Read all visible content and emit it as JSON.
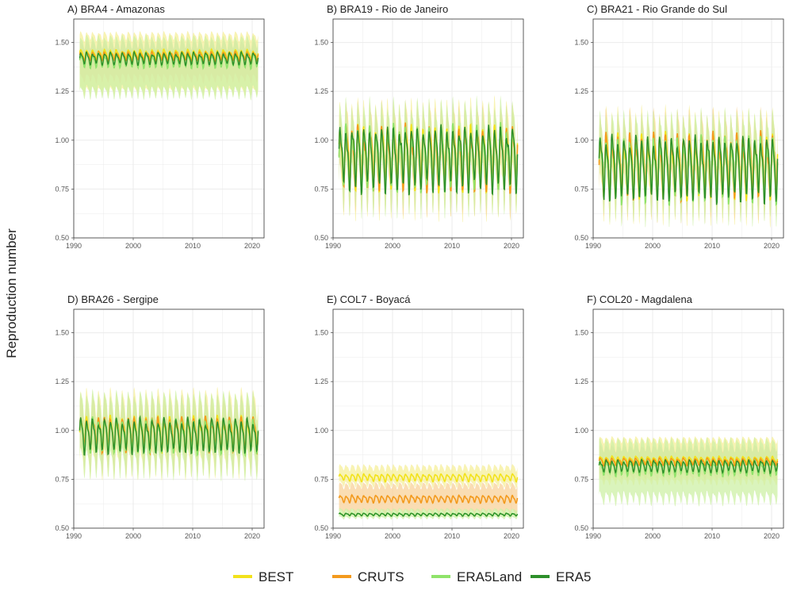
{
  "figure": {
    "ylabel": "Reproduction number",
    "colors": {
      "BEST": "#f2e21b",
      "CRUTS": "#f39a1d",
      "ERA5Land": "#8fe36a",
      "ERA5": "#2d8f2a",
      "ribbon_BEST": "#f6ef9a",
      "ribbon_CRUTS": "#f8d29a",
      "ribbon_ERA5Land": "#cdf0a6",
      "grid": "#ebebeb",
      "frame": "#333333"
    }
  },
  "chart_data": [
    {
      "type": "line",
      "title": "A) BRA4 - Amazonas",
      "xlim": [
        1990,
        2022
      ],
      "ylim": [
        0.5,
        1.62
      ],
      "xticks": [
        1990,
        2000,
        2010,
        2020
      ],
      "xtick_labels": [
        "1990",
        "2000",
        "2010",
        "2020"
      ],
      "yticks": [
        0.5,
        0.75,
        1.0,
        1.25,
        1.5
      ],
      "ytick_labels": [
        "0.50",
        "0.75",
        "1.00",
        "1.25",
        "1.50"
      ],
      "grid": true,
      "series": [
        {
          "name": "BEST",
          "mean": 1.44,
          "amplitude": 0.02,
          "low": 1.22,
          "high": 1.55
        },
        {
          "name": "CRUTS",
          "mean": 1.43,
          "amplitude": 0.02,
          "low": 1.3,
          "high": 1.5
        },
        {
          "name": "ERA5Land",
          "mean": 1.41,
          "amplitude": 0.03,
          "low": 1.22,
          "high": 1.52
        },
        {
          "name": "ERA5",
          "mean": 1.42,
          "amplitude": 0.025
        }
      ]
    },
    {
      "type": "line",
      "title": "B) BRA19 - Rio de Janeiro",
      "xlim": [
        1990,
        2022
      ],
      "ylim": [
        0.5,
        1.62
      ],
      "xticks": [
        1990,
        2000,
        2010,
        2020
      ],
      "xtick_labels": [
        "1990",
        "2000",
        "2010",
        "2020"
      ],
      "yticks": [
        0.5,
        0.75,
        1.0,
        1.25,
        1.5
      ],
      "ytick_labels": [
        "0.50",
        "0.75",
        "1.00",
        "1.25",
        "1.50"
      ],
      "grid": true,
      "series": [
        {
          "name": "BEST",
          "mean": 0.93,
          "amplitude": 0.13,
          "low": 0.75,
          "high": 1.1
        },
        {
          "name": "CRUTS",
          "mean": 0.92,
          "amplitude": 0.13,
          "low": 0.77,
          "high": 1.07
        },
        {
          "name": "ERA5Land",
          "mean": 0.92,
          "amplitude": 0.13,
          "low": 0.76,
          "high": 1.09
        },
        {
          "name": "ERA5",
          "mean": 0.92,
          "amplitude": 0.13
        }
      ]
    },
    {
      "type": "line",
      "title": "C) BRA21 - Rio Grande do Sul",
      "xlim": [
        1990,
        2022
      ],
      "ylim": [
        0.5,
        1.62
      ],
      "xticks": [
        1990,
        2000,
        2010,
        2020
      ],
      "xtick_labels": [
        "1990",
        "2000",
        "2010",
        "2020"
      ],
      "yticks": [
        0.5,
        0.75,
        1.0,
        1.25,
        1.5
      ],
      "ytick_labels": [
        "0.50",
        "0.75",
        "1.00",
        "1.25",
        "1.50"
      ],
      "grid": true,
      "series": [
        {
          "name": "BEST",
          "mean": 0.88,
          "amplitude": 0.13,
          "low": 0.72,
          "high": 1.05
        },
        {
          "name": "CRUTS",
          "mean": 0.88,
          "amplitude": 0.13,
          "low": 0.74,
          "high": 1.03
        },
        {
          "name": "ERA5Land",
          "mean": 0.87,
          "amplitude": 0.13,
          "low": 0.73,
          "high": 1.04
        },
        {
          "name": "ERA5",
          "mean": 0.87,
          "amplitude": 0.13
        }
      ]
    },
    {
      "type": "line",
      "title": "D) BRA26 - Sergipe",
      "xlim": [
        1990,
        2022
      ],
      "ylim": [
        0.5,
        1.62
      ],
      "xticks": [
        1990,
        2000,
        2010,
        2020
      ],
      "xtick_labels": [
        "1990",
        "2000",
        "2010",
        "2020"
      ],
      "yticks": [
        0.5,
        0.75,
        1.0,
        1.25,
        1.5
      ],
      "ytick_labels": [
        "0.50",
        "0.75",
        "1.00",
        "1.25",
        "1.50"
      ],
      "grid": true,
      "series": [
        {
          "name": "BEST",
          "mean": 0.99,
          "amplitude": 0.07,
          "low": 0.82,
          "high": 1.16
        },
        {
          "name": "CRUTS",
          "mean": 0.99,
          "amplitude": 0.07,
          "low": 0.86,
          "high": 1.12
        },
        {
          "name": "ERA5Land",
          "mean": 0.98,
          "amplitude": 0.07,
          "low": 0.82,
          "high": 1.15
        },
        {
          "name": "ERA5",
          "mean": 0.98,
          "amplitude": 0.07
        }
      ]
    },
    {
      "type": "line",
      "title": "E) COL7 - Boyacá",
      "xlim": [
        1990,
        2022
      ],
      "ylim": [
        0.5,
        1.62
      ],
      "xticks": [
        1990,
        2000,
        2010,
        2020
      ],
      "xtick_labels": [
        "1990",
        "2000",
        "2010",
        "2020"
      ],
      "yticks": [
        0.5,
        0.75,
        1.0,
        1.25,
        1.5
      ],
      "ytick_labels": [
        "0.50",
        "0.75",
        "1.00",
        "1.25",
        "1.50"
      ],
      "grid": true,
      "series": [
        {
          "name": "BEST",
          "mean": 0.76,
          "amplitude": 0.015,
          "low": 0.72,
          "high": 0.82
        },
        {
          "name": "CRUTS",
          "mean": 0.65,
          "amplitude": 0.015,
          "low": 0.57,
          "high": 0.73
        },
        {
          "name": "ERA5Land",
          "mean": 0.57,
          "amplitude": 0.006,
          "low": 0.55,
          "high": 0.6
        },
        {
          "name": "ERA5",
          "mean": 0.57,
          "amplitude": 0.006
        }
      ]
    },
    {
      "type": "line",
      "title": "F) COL20 - Magdalena",
      "xlim": [
        1990,
        2022
      ],
      "ylim": [
        0.5,
        1.62
      ],
      "xticks": [
        1990,
        2000,
        2010,
        2020
      ],
      "xtick_labels": [
        "1990",
        "2000",
        "2010",
        "2020"
      ],
      "yticks": [
        0.5,
        0.75,
        1.0,
        1.25,
        1.5
      ],
      "ytick_labels": [
        "0.50",
        "0.75",
        "1.00",
        "1.25",
        "1.50"
      ],
      "grid": true,
      "series": [
        {
          "name": "BEST",
          "mean": 0.85,
          "amplitude": 0.015,
          "low": 0.72,
          "high": 0.97
        },
        {
          "name": "CRUTS",
          "mean": 0.84,
          "amplitude": 0.015,
          "low": 0.75,
          "high": 0.92
        },
        {
          "name": "ERA5Land",
          "mean": 0.81,
          "amplitude": 0.03,
          "low": 0.63,
          "high": 0.95
        },
        {
          "name": "ERA5",
          "mean": 0.82,
          "amplitude": 0.025
        }
      ]
    }
  ],
  "legend": {
    "placement": "bottom",
    "items": [
      {
        "label": "BEST",
        "color": "#f2e21b"
      },
      {
        "label": "CRUTS",
        "color": "#f39a1d"
      },
      {
        "label": "ERA5Land",
        "color": "#8fe36a"
      },
      {
        "label": "ERA5",
        "color": "#2d8f2a"
      }
    ]
  }
}
